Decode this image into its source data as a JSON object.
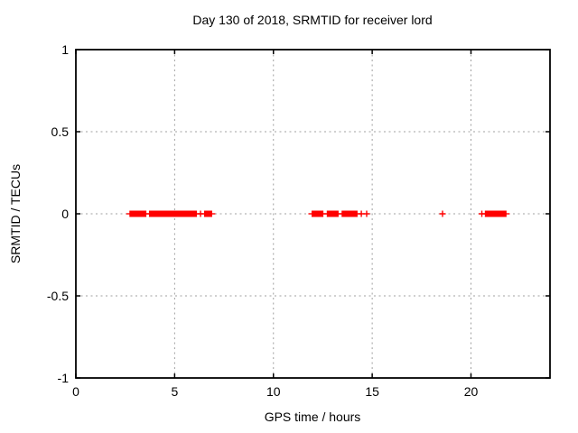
{
  "chart_data": {
    "type": "scatter",
    "title": "Day 130 of 2018, SRMTID for receiver lord",
    "xlabel": "GPS time / hours",
    "ylabel": "SRMTID / TECUs",
    "xlim": [
      0,
      24
    ],
    "ylim": [
      -1,
      1
    ],
    "xticks": [
      0,
      5,
      10,
      15,
      20
    ],
    "yticks": [
      1,
      0.5,
      0,
      -0.5,
      -1
    ],
    "grid": true,
    "legend": "none",
    "marker": "plus",
    "series_color": "#ff0000",
    "grid_color": "#a0a0a0",
    "series": [
      {
        "name": "SRMTID",
        "y": 0,
        "dense_segments_hours": [
          [
            2.71,
            3.57
          ],
          [
            3.7,
            6.13
          ],
          [
            6.49,
            6.9
          ],
          [
            11.93,
            12.53
          ],
          [
            12.7,
            13.3
          ],
          [
            13.45,
            14.26
          ],
          [
            20.7,
            21.8
          ]
        ],
        "isolated_points_hours": [
          6.31,
          14.45,
          14.72,
          18.56,
          20.55
        ]
      }
    ]
  }
}
